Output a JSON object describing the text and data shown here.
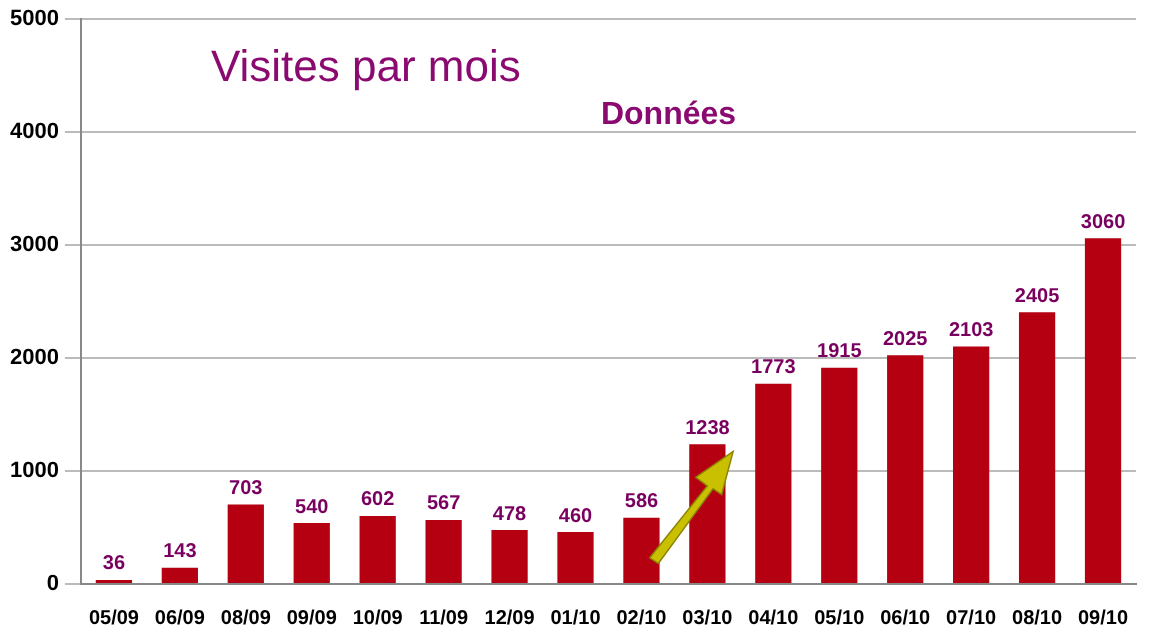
{
  "chart_data": {
    "type": "bar",
    "title": "Visites par mois",
    "subtitle": "Données",
    "categories": [
      "05/09",
      "06/09",
      "08/09",
      "09/09",
      "10/09",
      "11/09",
      "12/09",
      "01/10",
      "02/10",
      "03/10",
      "04/10",
      "05/10",
      "06/10",
      "07/10",
      "08/10",
      "09/10"
    ],
    "values": [
      36,
      143,
      703,
      540,
      602,
      567,
      478,
      460,
      586,
      1238,
      1773,
      1915,
      2025,
      2103,
      2405,
      3060
    ],
    "color": "#b50012",
    "ylim": [
      0,
      5000
    ],
    "yticks": [
      0,
      1000,
      2000,
      3000,
      4000,
      5000
    ],
    "grid": "y",
    "data_labels": true
  }
}
